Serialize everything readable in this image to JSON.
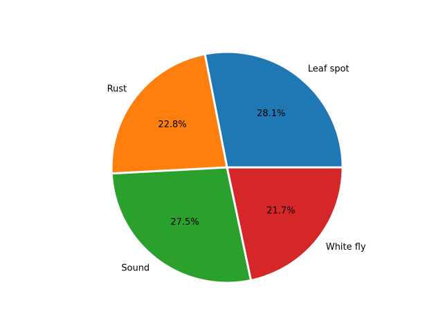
{
  "chart_data": {
    "type": "pie",
    "categories": [
      "Leaf spot",
      "Rust",
      "Sound",
      "White fly"
    ],
    "values": [
      28.1,
      22.8,
      27.5,
      21.7
    ],
    "percent_labels": [
      "28.1%",
      "22.8%",
      "27.5%",
      "21.7%"
    ],
    "colors": [
      "#1f77b4",
      "#ff7f0e",
      "#2ca02c",
      "#d62728"
    ],
    "start_angle_deg": 0,
    "direction": "counterclockwise",
    "edge_color": "#ffffff",
    "title": ""
  }
}
